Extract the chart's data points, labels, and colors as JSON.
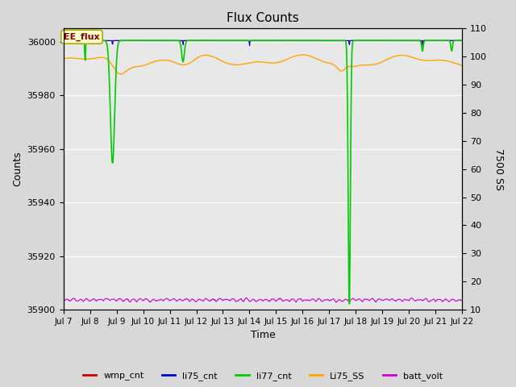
{
  "title": "Flux Counts",
  "xlabel": "Time",
  "ylabel_left": "Counts",
  "ylabel_right": "7500 SS",
  "annotation_text": "EE_flux",
  "ylim_left": [
    35900,
    36005
  ],
  "ylim_right": [
    10,
    110
  ],
  "yticks_left": [
    35900,
    35920,
    35940,
    35960,
    35980,
    36000
  ],
  "yticks_right": [
    10,
    20,
    30,
    40,
    50,
    60,
    70,
    80,
    90,
    100,
    110
  ],
  "xtick_labels": [
    "Jul 7",
    "Jul 8",
    "Jul 9",
    "Jul 10",
    "Jul 11",
    "Jul 12",
    "Jul 13",
    "Jul 14",
    "Jul 15",
    "Jul 16",
    "Jul 17",
    "Jul 18",
    "Jul 19",
    "Jul 20",
    "Jul 21",
    "Jul 22"
  ],
  "colors": {
    "wmp_cnt": "#cc0000",
    "li75_cnt": "#0000cc",
    "li77_cnt": "#00cc00",
    "Li75_SS": "#ffa500",
    "batt_volt": "#cc00cc"
  },
  "fig_bg_color": "#d8d8d8",
  "plot_bg_color": "#e8e8e8",
  "seed": 42
}
